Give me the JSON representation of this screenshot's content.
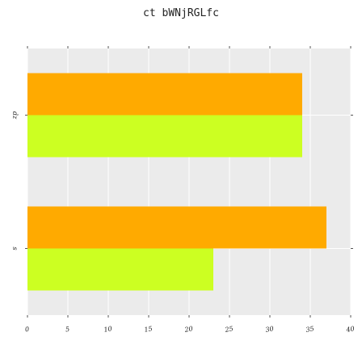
{
  "chart_data": {
    "type": "bar",
    "orientation": "horizontal",
    "title": "ct bWNjRGLfc",
    "xlabel": "",
    "ylabel": "",
    "categories": [
      "dz",
      "s"
    ],
    "series": [
      {
        "values": [
          34,
          37
        ],
        "color": "#FFAA00"
      },
      {
        "values": [
          34,
          23
        ],
        "color": "#CCFF22"
      }
    ],
    "xlim": [
      0,
      40
    ],
    "x_ticks": [
      "0",
      "5",
      "10",
      "15",
      "20",
      "25",
      "30",
      "35",
      "40"
    ],
    "grid": true,
    "background": "#EBEBEB",
    "grid_color": "#FFFFFF"
  }
}
